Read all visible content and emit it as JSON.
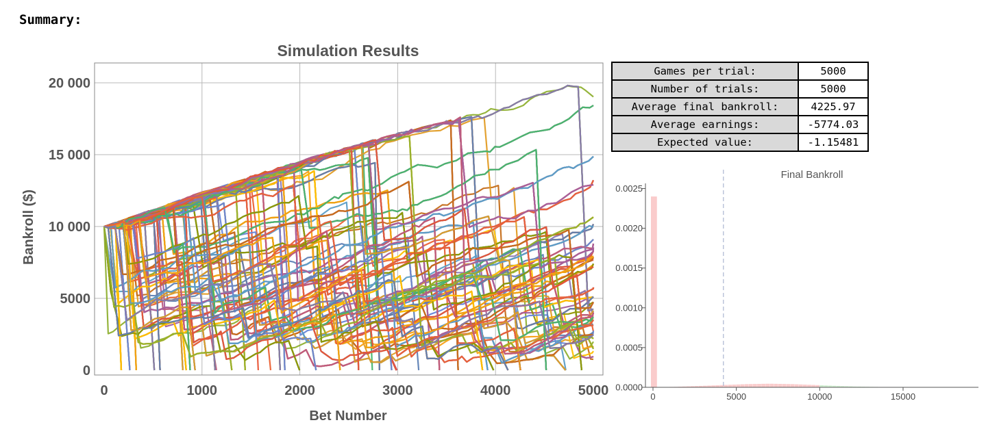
{
  "heading": "Summary:",
  "summary_table": [
    {
      "label": "Games per trial:",
      "value": "5000"
    },
    {
      "label": "Number of trials:",
      "value": "5000"
    },
    {
      "label": "Average final bankroll:",
      "value": "4225.97"
    },
    {
      "label": "Average earnings:",
      "value": "-5774.03"
    },
    {
      "label": "Expected value:",
      "value": "-1.15481"
    }
  ],
  "chart_data": [
    {
      "type": "line",
      "title": "Simulation Results",
      "xlabel": "Bet Number",
      "ylabel": "Bankroll ($)",
      "xlim": [
        0,
        5000
      ],
      "ylim": [
        0,
        20000
      ],
      "xticks": [
        "0",
        "1000",
        "2000",
        "3000",
        "4000",
        "5000"
      ],
      "yticks": [
        "0",
        "5000",
        "10 000",
        "15 000",
        "20 000"
      ],
      "grid": true,
      "series_count": 5000,
      "start_value": 10000,
      "upper_envelope": [
        {
          "x": 0,
          "y": 10000
        },
        {
          "x": 1000,
          "y": 12400
        },
        {
          "x": 2000,
          "y": 14600
        },
        {
          "x": 3000,
          "y": 16500
        },
        {
          "x": 4000,
          "y": 18300
        },
        {
          "x": 4800,
          "y": 20000
        },
        {
          "x": 5000,
          "y": 19200
        }
      ],
      "palette": [
        "#5E81B5",
        "#E19C24",
        "#8FB032",
        "#EB6235",
        "#8778B3",
        "#C56E1A",
        "#5D9EC7",
        "#FFBF00",
        "#A5609D",
        "#929600",
        "#E95536",
        "#6685D9",
        "#F89F13",
        "#BC5B80",
        "#47B66D"
      ]
    },
    {
      "type": "bar",
      "title": "Final Bankroll",
      "xlim": [
        0,
        19500
      ],
      "ylim": [
        0,
        0.0025
      ],
      "xticks": [
        "0",
        "5000",
        "10000",
        "15000"
      ],
      "yticks": [
        "0.0000",
        "0.0005",
        "0.0010",
        "0.0015",
        "0.0020",
        "0.0025"
      ],
      "bin_width": 250,
      "bins": [
        {
          "x0": 0,
          "density": 0.0024
        },
        {
          "x0": 250,
          "density": 2e-06
        },
        {
          "x0": 500,
          "density": 3e-06
        },
        {
          "x0": 750,
          "density": 4e-06
        },
        {
          "x0": 1000,
          "density": 5e-06
        },
        {
          "x0": 1250,
          "density": 6e-06
        },
        {
          "x0": 1500,
          "density": 8e-06
        },
        {
          "x0": 1750,
          "density": 1e-05
        },
        {
          "x0": 2000,
          "density": 1.2e-05
        },
        {
          "x0": 2250,
          "density": 1.4e-05
        },
        {
          "x0": 2500,
          "density": 1.6e-05
        },
        {
          "x0": 2750,
          "density": 1.8e-05
        },
        {
          "x0": 3000,
          "density": 2e-05
        },
        {
          "x0": 3250,
          "density": 2.2e-05
        },
        {
          "x0": 3500,
          "density": 2.4e-05
        },
        {
          "x0": 3750,
          "density": 2.6e-05
        },
        {
          "x0": 4000,
          "density": 2.8e-05
        },
        {
          "x0": 4250,
          "density": 3e-05
        },
        {
          "x0": 4500,
          "density": 3.2e-05
        },
        {
          "x0": 4750,
          "density": 3.4e-05
        },
        {
          "x0": 5000,
          "density": 3.6e-05
        },
        {
          "x0": 5250,
          "density": 3.8e-05
        },
        {
          "x0": 5500,
          "density": 4e-05
        },
        {
          "x0": 5750,
          "density": 4.1e-05
        },
        {
          "x0": 6000,
          "density": 4.2e-05
        },
        {
          "x0": 6250,
          "density": 4.3e-05
        },
        {
          "x0": 6500,
          "density": 4.4e-05
        },
        {
          "x0": 6750,
          "density": 4.5e-05
        },
        {
          "x0": 7000,
          "density": 4.5e-05
        },
        {
          "x0": 7250,
          "density": 4.4e-05
        },
        {
          "x0": 7500,
          "density": 4.3e-05
        },
        {
          "x0": 7750,
          "density": 4.2e-05
        },
        {
          "x0": 8000,
          "density": 4.1e-05
        },
        {
          "x0": 8250,
          "density": 4e-05
        },
        {
          "x0": 8500,
          "density": 3.8e-05
        },
        {
          "x0": 8750,
          "density": 3.6e-05
        },
        {
          "x0": 9000,
          "density": 3.4e-05
        },
        {
          "x0": 9250,
          "density": 3.2e-05
        },
        {
          "x0": 9500,
          "density": 3e-05
        },
        {
          "x0": 9750,
          "density": 2.8e-05
        },
        {
          "x0": 10000,
          "density": 2.6e-05
        },
        {
          "x0": 10250,
          "density": 2.4e-05
        },
        {
          "x0": 10500,
          "density": 2.2e-05
        },
        {
          "x0": 10750,
          "density": 2e-05
        },
        {
          "x0": 11000,
          "density": 1.8e-05
        },
        {
          "x0": 11250,
          "density": 1.6e-05
        },
        {
          "x0": 11500,
          "density": 1.4e-05
        },
        {
          "x0": 11750,
          "density": 1.2e-05
        },
        {
          "x0": 12000,
          "density": 1e-05
        },
        {
          "x0": 12250,
          "density": 9e-06
        },
        {
          "x0": 12500,
          "density": 8e-06
        },
        {
          "x0": 12750,
          "density": 7e-06
        },
        {
          "x0": 13000,
          "density": 6e-06
        },
        {
          "x0": 13250,
          "density": 5e-06
        },
        {
          "x0": 13500,
          "density": 4e-06
        },
        {
          "x0": 13750,
          "density": 3e-06
        },
        {
          "x0": 14000,
          "density": 3e-06
        },
        {
          "x0": 14250,
          "density": 2e-06
        },
        {
          "x0": 14500,
          "density": 2e-06
        },
        {
          "x0": 14750,
          "density": 2e-06
        },
        {
          "x0": 15000,
          "density": 1e-06
        },
        {
          "x0": 15250,
          "density": 1e-06
        },
        {
          "x0": 15500,
          "density": 1e-06
        },
        {
          "x0": 15750,
          "density": 1e-06
        },
        {
          "x0": 16000,
          "density": 1e-06
        },
        {
          "x0": 16250,
          "density": 1e-06
        },
        {
          "x0": 16500,
          "density": 1e-06
        },
        {
          "x0": 16750,
          "density": 1e-06
        },
        {
          "x0": 17000,
          "density": 1e-06
        },
        {
          "x0": 17250,
          "density": 1e-06
        },
        {
          "x0": 17500,
          "density": 1e-06
        }
      ],
      "reference_line_x": 4225.97,
      "loss_color": "#F5A3A3",
      "gain_color": "#A9E0A9",
      "reference_color": "#9AA8C8"
    }
  ]
}
